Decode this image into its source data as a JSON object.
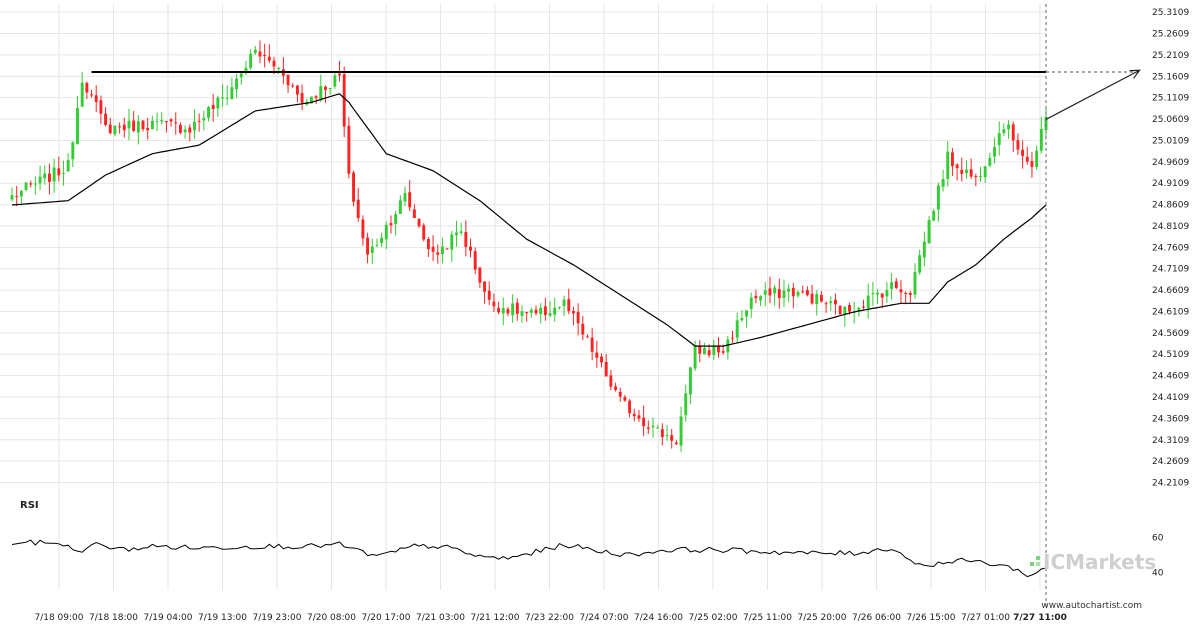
{
  "chart_data": [
    {
      "type": "candlestick",
      "title": "",
      "xlabel": "",
      "ylabel": "",
      "ylim": [
        24.17,
        25.33
      ],
      "y_ticks": [
        "25.3109",
        "25.2609",
        "25.2109",
        "25.1609",
        "25.1109",
        "25.0609",
        "25.0109",
        "24.9609",
        "24.9109",
        "24.8609",
        "24.8109",
        "24.7609",
        "24.7109",
        "24.6609",
        "24.6109",
        "24.5609",
        "24.5109",
        "24.4609",
        "24.4109",
        "24.3609",
        "24.3109",
        "24.2609",
        "24.2109"
      ],
      "x_ticks": [
        "7/18 09:00",
        "7/18 18:00",
        "7/19 04:00",
        "7/19 13:00",
        "7/19 23:00",
        "7/20 08:00",
        "7/20 17:00",
        "7/21 03:00",
        "7/21 12:00",
        "7/23 22:00",
        "7/24 07:00",
        "7/24 16:00",
        "7/25 02:00",
        "7/25 11:00",
        "7/25 20:00",
        "7/26 06:00",
        "7/26 15:00",
        "7/27 01:00",
        "7/27 11:00"
      ],
      "close_anchors": [
        [
          0,
          24.88
        ],
        [
          12,
          24.95
        ],
        [
          15,
          25.16
        ],
        [
          20,
          25.04
        ],
        [
          30,
          25.05
        ],
        [
          38,
          25.04
        ],
        [
          46,
          25.12
        ],
        [
          52,
          25.22
        ],
        [
          58,
          25.17
        ],
        [
          62,
          25.1
        ],
        [
          70,
          25.16
        ],
        [
          72,
          24.92
        ],
        [
          76,
          24.74
        ],
        [
          84,
          24.88
        ],
        [
          90,
          24.74
        ],
        [
          96,
          24.8
        ],
        [
          102,
          24.63
        ],
        [
          112,
          24.6
        ],
        [
          118,
          24.63
        ],
        [
          124,
          24.52
        ],
        [
          130,
          24.4
        ],
        [
          138,
          24.33
        ],
        [
          142,
          24.31
        ],
        [
          146,
          24.52
        ],
        [
          152,
          24.52
        ],
        [
          158,
          24.64
        ],
        [
          166,
          24.66
        ],
        [
          172,
          24.64
        ],
        [
          178,
          24.61
        ],
        [
          188,
          24.67
        ],
        [
          192,
          24.66
        ],
        [
          196,
          24.82
        ],
        [
          200,
          24.97
        ],
        [
          206,
          24.92
        ],
        [
          212,
          25.05
        ],
        [
          218,
          24.95
        ],
        [
          221,
          25.06
        ]
      ],
      "ma_anchors": [
        [
          0,
          24.86
        ],
        [
          12,
          24.87
        ],
        [
          20,
          24.93
        ],
        [
          30,
          24.98
        ],
        [
          40,
          25.0
        ],
        [
          52,
          25.08
        ],
        [
          64,
          25.1
        ],
        [
          70,
          25.12
        ],
        [
          72,
          25.1
        ],
        [
          80,
          24.98
        ],
        [
          90,
          24.94
        ],
        [
          100,
          24.87
        ],
        [
          110,
          24.78
        ],
        [
          120,
          24.72
        ],
        [
          130,
          24.65
        ],
        [
          140,
          24.58
        ],
        [
          146,
          24.53
        ],
        [
          152,
          24.53
        ],
        [
          160,
          24.55
        ],
        [
          170,
          24.58
        ],
        [
          180,
          24.61
        ],
        [
          190,
          24.63
        ],
        [
          196,
          24.63
        ],
        [
          200,
          24.68
        ],
        [
          206,
          24.72
        ],
        [
          212,
          24.78
        ],
        [
          218,
          24.83
        ],
        [
          221,
          24.86
        ]
      ],
      "resistance_level": 25.171,
      "resistance_start_index": 17,
      "projection": {
        "from": [
          221,
          25.06
        ],
        "to": [
          241,
          25.175
        ]
      },
      "up_color": "#33cc33",
      "down_color": "#ff2222",
      "grid": true,
      "y_axis_position": "right"
    },
    {
      "type": "line",
      "title": "RSI",
      "ylim": [
        30,
        70
      ],
      "y_ticks": [
        "60",
        "40"
      ],
      "anchors": [
        [
          0,
          57
        ],
        [
          10,
          57
        ],
        [
          14,
          52
        ],
        [
          18,
          56
        ],
        [
          24,
          53
        ],
        [
          30,
          55
        ],
        [
          40,
          54
        ],
        [
          52,
          55
        ],
        [
          64,
          55
        ],
        [
          70,
          56
        ],
        [
          78,
          49
        ],
        [
          86,
          55
        ],
        [
          92,
          55
        ],
        [
          100,
          49
        ],
        [
          106,
          48
        ],
        [
          114,
          53
        ],
        [
          118,
          56
        ],
        [
          126,
          52
        ],
        [
          132,
          50
        ],
        [
          140,
          53
        ],
        [
          150,
          53
        ],
        [
          160,
          52
        ],
        [
          170,
          51
        ],
        [
          180,
          51
        ],
        [
          188,
          54
        ],
        [
          194,
          44
        ],
        [
          204,
          47
        ],
        [
          212,
          44
        ],
        [
          218,
          38
        ],
        [
          221,
          43
        ]
      ],
      "grid": false,
      "y_axis_position": "right"
    }
  ],
  "branding": {
    "watermark": "ICMarkets",
    "credit": "www.autochartist.com"
  },
  "colors": {
    "ma_line": "#000000",
    "resistance_line": "#000000",
    "grid": "#e6e6e6",
    "watermark": "#cfcfcf",
    "watermark_accent": "#7fd07f"
  }
}
